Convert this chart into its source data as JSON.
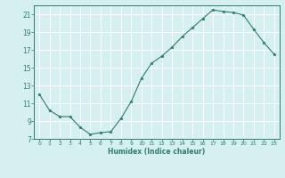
{
  "x": [
    0,
    1,
    2,
    3,
    4,
    5,
    6,
    7,
    8,
    9,
    10,
    11,
    12,
    13,
    14,
    15,
    16,
    17,
    18,
    19,
    20,
    21,
    22,
    23
  ],
  "y": [
    12.0,
    10.2,
    9.5,
    9.5,
    8.3,
    7.5,
    7.7,
    7.8,
    9.3,
    11.2,
    13.8,
    15.5,
    16.3,
    17.3,
    18.5,
    19.5,
    20.5,
    21.5,
    21.3,
    21.2,
    20.9,
    19.3,
    17.8,
    16.5
  ],
  "xlabel": "Humidex (Indice chaleur)",
  "xlim": [
    -0.5,
    23.5
  ],
  "ylim": [
    7,
    22
  ],
  "yticks": [
    7,
    9,
    11,
    13,
    15,
    17,
    19,
    21
  ],
  "xticks": [
    0,
    1,
    2,
    3,
    4,
    5,
    6,
    7,
    8,
    9,
    10,
    11,
    12,
    13,
    14,
    15,
    16,
    17,
    18,
    19,
    20,
    21,
    22,
    23
  ],
  "line_color": "#2e7d6e",
  "marker": "*",
  "bg_color": "#d6eff0",
  "grid_color": "#ffffff"
}
